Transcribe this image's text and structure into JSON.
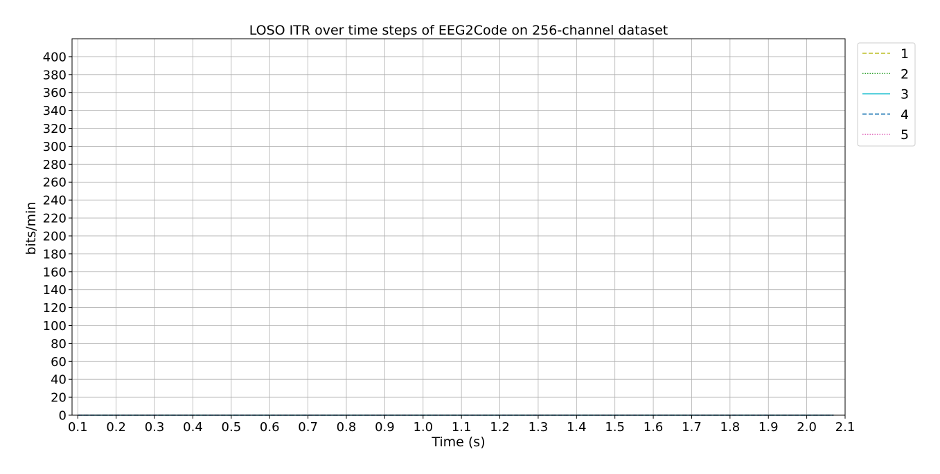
{
  "chart_data": {
    "type": "line",
    "title": "LOSO ITR over time steps of EEG2Code on 256-channel dataset",
    "xlabel": "Time (s)",
    "ylabel": "bits/min",
    "xlim": [
      0.085,
      2.1
    ],
    "ylim": [
      0,
      420
    ],
    "xticks": [
      "0.1",
      "0.2",
      "0.3",
      "0.4",
      "0.5",
      "0.6",
      "0.7",
      "0.8",
      "0.9",
      "1.0",
      "1.1",
      "1.2",
      "1.3",
      "1.4",
      "1.5",
      "1.6",
      "1.7",
      "1.8",
      "1.9",
      "2.0",
      "2.1"
    ],
    "yticks": [
      "0",
      "20",
      "40",
      "60",
      "80",
      "100",
      "120",
      "140",
      "160",
      "180",
      "200",
      "220",
      "240",
      "260",
      "280",
      "300",
      "320",
      "340",
      "360",
      "380",
      "400"
    ],
    "grid": true,
    "legend_position": "outside-top-right",
    "x": [
      0.1,
      0.2,
      0.3,
      0.4,
      0.5,
      0.6,
      0.7,
      0.8,
      0.9,
      1.0,
      1.1,
      1.2,
      1.3,
      1.4,
      1.5,
      1.6,
      1.7,
      1.8,
      1.9,
      2.0,
      2.07
    ],
    "series": [
      {
        "name": "1",
        "color": "#bcbd22",
        "style": "dashed",
        "values": [
          0,
          0,
          0,
          0,
          0,
          0,
          0,
          0,
          0,
          0,
          0,
          0,
          0,
          0,
          0,
          0,
          0,
          0,
          0,
          0,
          0
        ]
      },
      {
        "name": "2",
        "color": "#2ca02c",
        "style": "dotted",
        "values": [
          0,
          0,
          0,
          0,
          0,
          0,
          0,
          0,
          0,
          0,
          0,
          0,
          0,
          0,
          0,
          0,
          0,
          0,
          0,
          0,
          0
        ]
      },
      {
        "name": "3",
        "color": "#17becf",
        "style": "solid",
        "values": [
          0,
          0,
          0,
          0,
          0,
          0,
          0,
          0,
          0,
          0,
          0,
          0,
          0,
          0,
          0,
          0,
          0,
          0,
          0,
          0,
          0
        ]
      },
      {
        "name": "4",
        "color": "#1f77b4",
        "style": "dashed",
        "values": [
          0,
          0,
          0,
          0,
          0,
          0,
          0,
          0,
          0,
          0,
          0,
          0,
          0,
          0,
          0,
          0,
          0,
          0,
          0,
          0,
          0
        ]
      },
      {
        "name": "5",
        "color": "#e377c2",
        "style": "dotted",
        "values": [
          0,
          0,
          0,
          0,
          0,
          0,
          0,
          0,
          0,
          0,
          0,
          0,
          0,
          0,
          0,
          0,
          0,
          0,
          0,
          0,
          0
        ]
      }
    ]
  }
}
